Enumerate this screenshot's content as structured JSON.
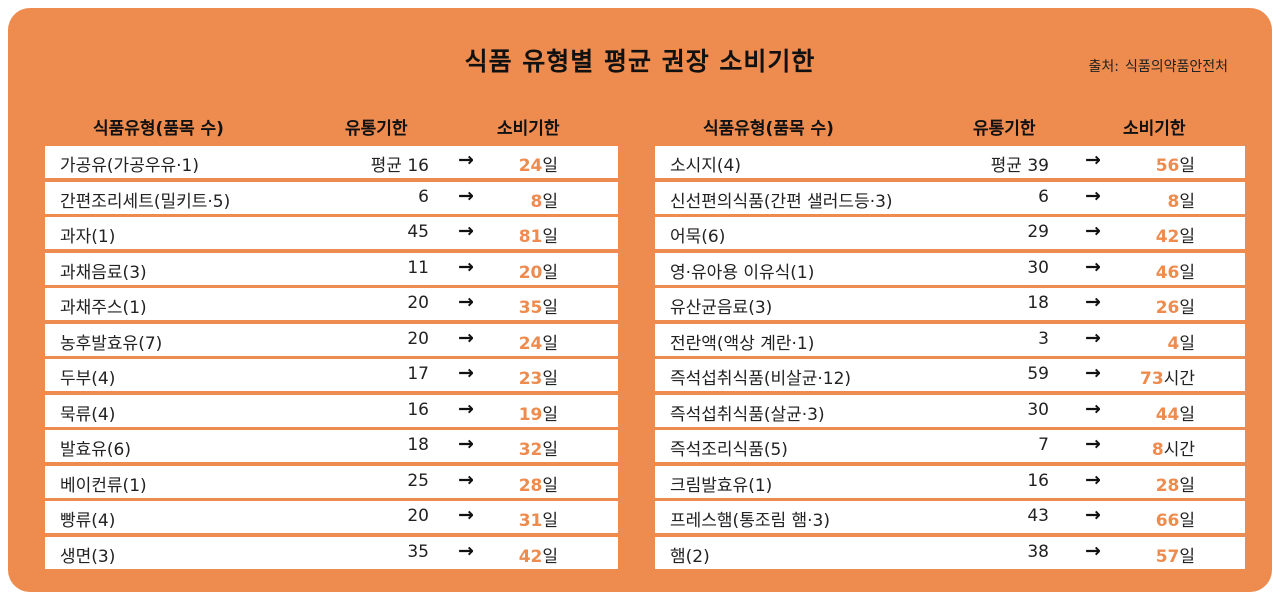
{
  "title": "식품 유형별 평균 권장 소비기한",
  "source": {
    "label": "출처:",
    "value": "식품의약품안전처"
  },
  "headers": {
    "type": "식품유형(품목 수)",
    "shelf_life": "유통기한",
    "consume_by": "소비기한"
  },
  "arrow": "→",
  "accent_color": "#EE8B4E",
  "left_rows": [
    {
      "name": "가공유(가공우유·1)",
      "shelf": "평균 16",
      "value": "24",
      "unit": "일"
    },
    {
      "name": "간편조리세트(밀키트·5)",
      "shelf": "6",
      "value": "8",
      "unit": "일"
    },
    {
      "name": "과자(1)",
      "shelf": "45",
      "value": "81",
      "unit": "일"
    },
    {
      "name": "과채음료(3)",
      "shelf": "11",
      "value": "20",
      "unit": "일"
    },
    {
      "name": "과채주스(1)",
      "shelf": "20",
      "value": "35",
      "unit": "일"
    },
    {
      "name": "농후발효유(7)",
      "shelf": "20",
      "value": "24",
      "unit": "일"
    },
    {
      "name": "두부(4)",
      "shelf": "17",
      "value": "23",
      "unit": "일"
    },
    {
      "name": "묵류(4)",
      "shelf": "16",
      "value": "19",
      "unit": "일"
    },
    {
      "name": "발효유(6)",
      "shelf": "18",
      "value": "32",
      "unit": "일"
    },
    {
      "name": "베이컨류(1)",
      "shelf": "25",
      "value": "28",
      "unit": "일"
    },
    {
      "name": "빵류(4)",
      "shelf": "20",
      "value": "31",
      "unit": "일"
    },
    {
      "name": "생면(3)",
      "shelf": "35",
      "value": "42",
      "unit": "일"
    }
  ],
  "right_rows": [
    {
      "name": "소시지(4)",
      "shelf": "평균 39",
      "value": "56",
      "unit": "일"
    },
    {
      "name": "신선편의식품(간편 샐러드등·3)",
      "shelf": "6",
      "value": "8",
      "unit": "일"
    },
    {
      "name": "어묵(6)",
      "shelf": "29",
      "value": "42",
      "unit": "일"
    },
    {
      "name": "영·유아용 이유식(1)",
      "shelf": "30",
      "value": "46",
      "unit": "일"
    },
    {
      "name": "유산균음료(3)",
      "shelf": "18",
      "value": "26",
      "unit": "일"
    },
    {
      "name": "전란액(액상 계란·1)",
      "shelf": "3",
      "value": "4",
      "unit": "일"
    },
    {
      "name": "즉석섭취식품(비살균·12)",
      "shelf": "59",
      "value": "73",
      "unit": "시간"
    },
    {
      "name": "즉석섭취식품(살균·3)",
      "shelf": "30",
      "value": "44",
      "unit": "일"
    },
    {
      "name": "즉석조리식품(5)",
      "shelf": "7",
      "value": "8",
      "unit": "시간"
    },
    {
      "name": "크림발효유(1)",
      "shelf": "16",
      "value": "28",
      "unit": "일"
    },
    {
      "name": "프레스햄(통조림 햄·3)",
      "shelf": "43",
      "value": "66",
      "unit": "일"
    },
    {
      "name": "햄(2)",
      "shelf": "38",
      "value": "57",
      "unit": "일"
    }
  ]
}
